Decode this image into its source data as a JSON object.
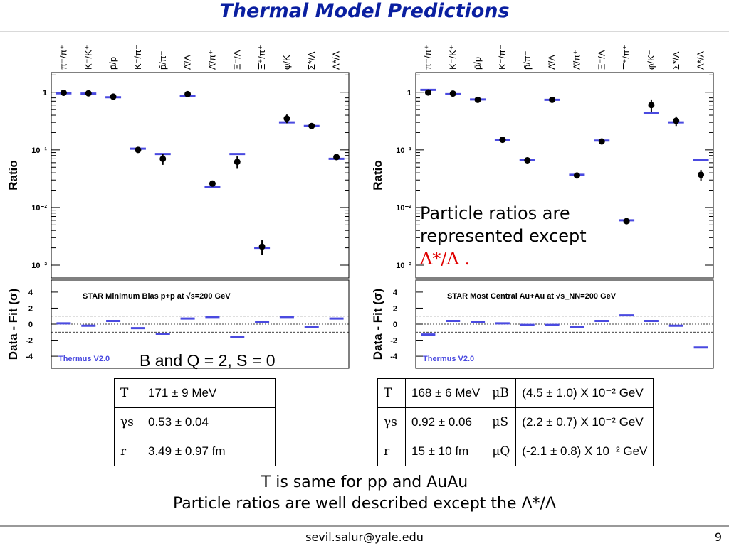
{
  "title": "Thermal Model Predictions",
  "categories": [
    "π⁻/π⁺",
    "K⁻/K⁺",
    "p̄/p",
    "K⁻/π⁻",
    "p̄/π⁻",
    "Λ̄/Λ",
    "Λ̄/π⁺",
    "Ξ⁻/Λ",
    "Ξ̄⁺/π⁺",
    "φ/K⁻",
    "Σ*/Λ",
    "Λ*/Λ"
  ],
  "colors": {
    "title": "#0a1fa0",
    "model": "#4a4ae0",
    "data": "#000000",
    "note_red": "#e00000"
  },
  "chart_data": [
    {
      "type": "scatter",
      "ylabel": "Ratio",
      "yscale": "log",
      "ylim": [
        0.0006,
        2.2
      ],
      "ytick_labels": [
        "1",
        "10⁻¹",
        "10⁻²",
        "10⁻³"
      ],
      "ytick_values": [
        1,
        0.1,
        0.01,
        0.001
      ],
      "data": [
        0.98,
        0.96,
        0.84,
        0.1,
        0.07,
        0.93,
        0.026,
        0.062,
        0.0021,
        0.35,
        0.26,
        0.075
      ],
      "data_err": [
        0.08,
        0.04,
        0.1,
        0.005,
        0.015,
        0.08,
        0.002,
        0.015,
        0.0006,
        0.06,
        0.02,
        0.005
      ],
      "model": [
        0.96,
        0.95,
        0.82,
        0.105,
        0.085,
        0.87,
        0.023,
        0.085,
        0.002,
        0.3,
        0.26,
        0.07
      ],
      "residual_ylabel": "Data  -  Fit (σ)",
      "residual_ylim": [
        -5.5,
        5.5
      ],
      "residual_ticks": [
        4,
        2,
        0,
        -2,
        -4
      ],
      "residuals": [
        0.1,
        -0.2,
        0.4,
        -0.5,
        -1.2,
        0.7,
        0.9,
        -1.6,
        0.3,
        0.9,
        -0.4,
        0.7
      ],
      "annotation": "STAR  Minimum  Bias  p+p  at  √s=200  GeV",
      "software": "Thermus  V2.0"
    },
    {
      "type": "scatter",
      "ylabel": "Ratio",
      "yscale": "log",
      "ylim": [
        0.0006,
        2.2
      ],
      "ytick_labels": [
        "1",
        "10⁻¹",
        "10⁻²",
        "10⁻³"
      ],
      "ytick_values": [
        1,
        0.1,
        0.01,
        0.001
      ],
      "data": [
        0.99,
        0.95,
        0.74,
        0.15,
        0.066,
        0.74,
        0.036,
        0.14,
        0.0058,
        0.6,
        0.32,
        0.037
      ],
      "data_err": [
        0.05,
        0.04,
        0.04,
        0.01,
        0.004,
        0.05,
        0.002,
        0.01,
        0.0004,
        0.15,
        0.06,
        0.008
      ],
      "model": [
        1.1,
        0.93,
        0.75,
        0.15,
        0.067,
        0.74,
        0.037,
        0.145,
        0.006,
        0.44,
        0.3,
        0.066
      ],
      "residual_ylabel": "Data  -  Fit (σ)",
      "residual_ylim": [
        -5.5,
        5.5
      ],
      "residual_ticks": [
        4,
        2,
        0,
        -2,
        -4
      ],
      "residuals": [
        -1.3,
        0.4,
        0.3,
        0.1,
        -0.1,
        -0.1,
        -0.4,
        0.4,
        1.1,
        0.4,
        -0.2,
        -2.9
      ],
      "annotation": "STAR  Most  Central  Au+Au  at  √s_NN=200  GeV",
      "software": "Thermus  V2.0"
    }
  ],
  "note": {
    "line1": "Particle ratios are",
    "line2": "represented except",
    "line3": "Λ*/Λ ."
  },
  "bq_label": "B and Q = 2, S = 0",
  "pp_table": [
    {
      "sym": "T",
      "val": "171 ± 9 MeV"
    },
    {
      "sym": "γs",
      "val": "0.53 ± 0.04"
    },
    {
      "sym": "r",
      "val": "3.49 ± 0.97 fm"
    }
  ],
  "auau_table": [
    {
      "sym": "T",
      "val": "168 ± 6 MeV",
      "mu": "μB",
      "muval": "(4.5 ± 1.0) X 10⁻² GeV"
    },
    {
      "sym": "γs",
      "val": "0.92 ± 0.06",
      "mu": "μS",
      "muval": "(2.2 ± 0.7) X 10⁻² GeV"
    },
    {
      "sym": "r",
      "val": "15 ± 10 fm",
      "mu": "μQ",
      "muval": "(-2.1 ± 0.8) X 10⁻² GeV"
    }
  ],
  "summary": {
    "line1": "T is same for pp and AuAu",
    "line2": "Particle ratios are well described except the Λ*/Λ"
  },
  "footer": {
    "email": "sevil.salur@yale.edu",
    "page": "9"
  }
}
